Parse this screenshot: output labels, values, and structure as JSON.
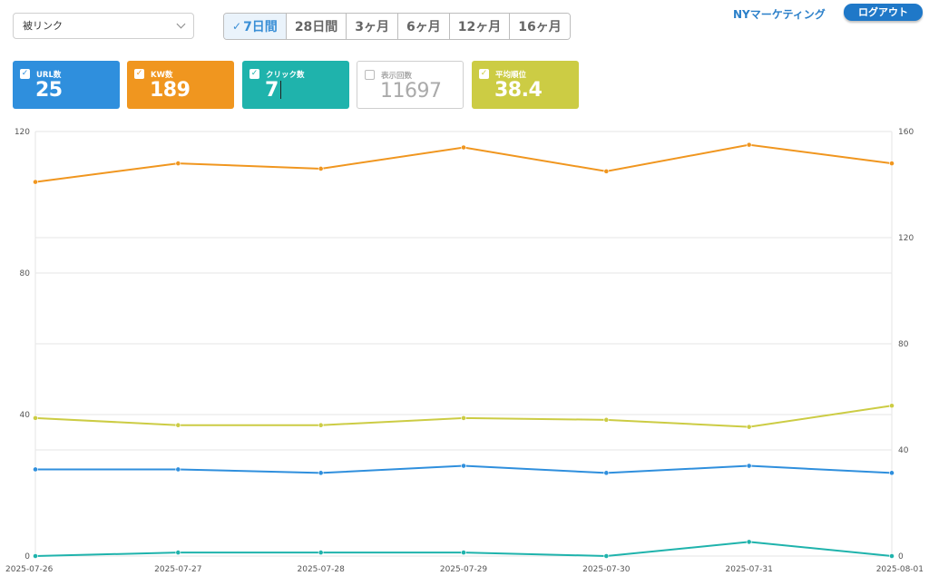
{
  "filter_select": {
    "value": "被リンク"
  },
  "periods": [
    {
      "label": "7日間",
      "active": true
    },
    {
      "label": "28日間",
      "active": false
    },
    {
      "label": "3ヶ月",
      "active": false
    },
    {
      "label": "6ヶ月",
      "active": false
    },
    {
      "label": "12ヶ月",
      "active": false
    },
    {
      "label": "16ヶ月",
      "active": false
    }
  ],
  "header": {
    "brand": "NYマーケティング",
    "logout_label": "ログアウト"
  },
  "metrics": [
    {
      "label": "URL数",
      "value": "25",
      "checked": true,
      "color": "#2f8fdd"
    },
    {
      "label": "KW数",
      "value": "189",
      "checked": true,
      "color": "#f0961f"
    },
    {
      "label": "クリック数",
      "value": "7",
      "checked": true,
      "color": "#1fb3ac"
    },
    {
      "label": "表示回数",
      "value": "11697",
      "checked": false,
      "color": "#ffffff"
    },
    {
      "label": "平均順位",
      "value": "38.4",
      "checked": true,
      "color": "#cccc44"
    }
  ],
  "chart_data": {
    "type": "line",
    "x": [
      "2025-07-26",
      "2025-07-27",
      "2025-07-28",
      "2025-07-29",
      "2025-07-30",
      "2025-07-31",
      "2025-08-01"
    ],
    "y_left": {
      "ticks": [
        0,
        40,
        80,
        120
      ],
      "lim": [
        0,
        120
      ]
    },
    "y_right": {
      "ticks": [
        0,
        40,
        80,
        120,
        160
      ],
      "lim": [
        0,
        160
      ]
    },
    "grid": true,
    "series": [
      {
        "color": "#f0961f",
        "axis": "right",
        "values": [
          141,
          148,
          146,
          154,
          145,
          155,
          148
        ]
      },
      {
        "color": "#cccc44",
        "axis": "left",
        "values": [
          39,
          37,
          37,
          39,
          38.5,
          36.5,
          42.5
        ]
      },
      {
        "color": "#2f8fdd",
        "axis": "left",
        "values": [
          24.5,
          24.5,
          23.5,
          25.5,
          23.5,
          25.5,
          23.5
        ]
      },
      {
        "color": "#1fb3ac",
        "axis": "left",
        "values": [
          0,
          1,
          1,
          1,
          0,
          4,
          0
        ]
      }
    ]
  }
}
